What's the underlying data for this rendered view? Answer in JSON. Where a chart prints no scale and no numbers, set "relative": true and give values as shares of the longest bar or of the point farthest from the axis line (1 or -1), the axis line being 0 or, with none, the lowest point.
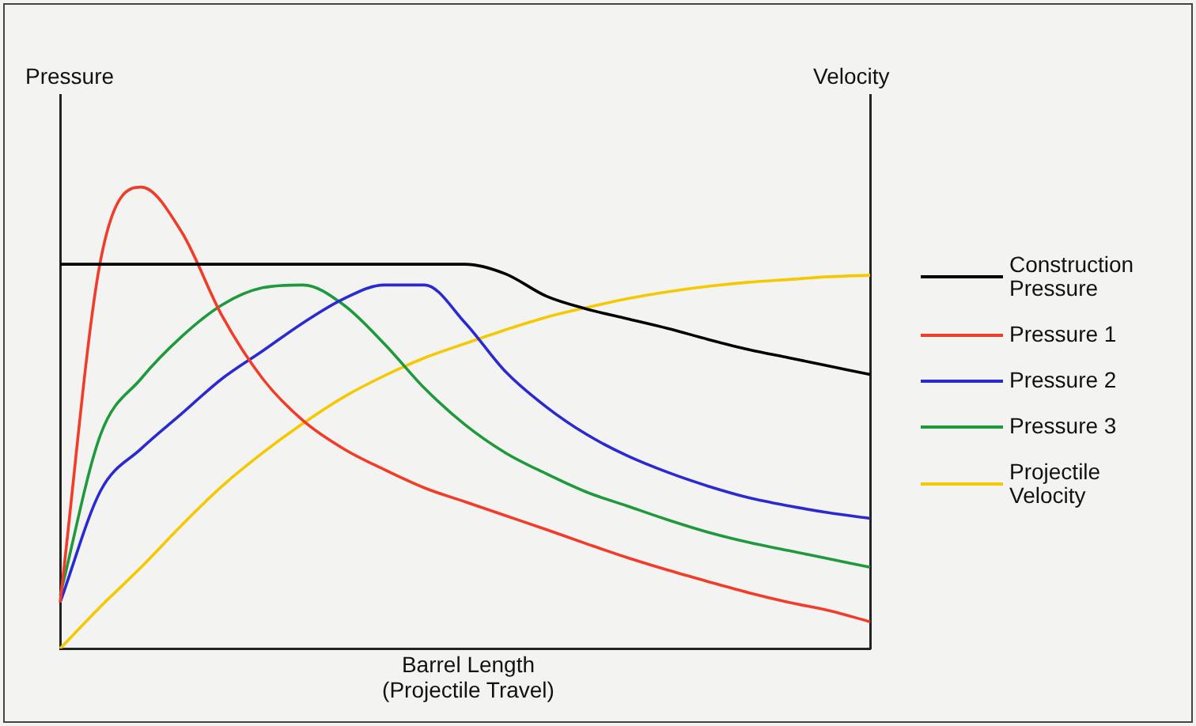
{
  "chart_data": {
    "type": "line",
    "relative": true,
    "ylabel": "Pressure",
    "y2label": "Velocity",
    "xlabel": "Barrel Length (Projectile Travel)",
    "categories": [
      null,
      null,
      null,
      null,
      null,
      null,
      null,
      null,
      null,
      null,
      null,
      null,
      null,
      null,
      null,
      null,
      null,
      null,
      null,
      null,
      null
    ],
    "series": [
      {
        "name": "Construction Pressure",
        "color": "#000000",
        "values": [
          0.833,
          0.833,
          0.833,
          0.833,
          0.833,
          0.833,
          0.833,
          0.833,
          0.833,
          0.833,
          0.833,
          0.812,
          0.764,
          0.736,
          0.715,
          0.694,
          0.67,
          0.648,
          0.63,
          0.612,
          0.594
        ]
      },
      {
        "name": "Pressure 1",
        "color": "#f03c28",
        "values": [
          0.1,
          0.842,
          1,
          0.903,
          0.721,
          0.585,
          0.494,
          0.433,
          0.388,
          0.348,
          0.318,
          0.288,
          0.258,
          0.227,
          0.197,
          0.17,
          0.145,
          0.121,
          0.1,
          0.082,
          0.058
        ]
      },
      {
        "name": "Pressure 2",
        "color": "#2a2ad0",
        "values": [
          0.1,
          0.342,
          0.433,
          0.509,
          0.585,
          0.645,
          0.706,
          0.758,
          0.788,
          0.788,
          0.706,
          0.6,
          0.524,
          0.464,
          0.418,
          0.382,
          0.352,
          0.327,
          0.309,
          0.294,
          0.282
        ]
      },
      {
        "name": "Pressure 3",
        "color": "#1e9a3c",
        "values": [
          0.115,
          0.464,
          0.585,
          0.676,
          0.745,
          0.782,
          0.788,
          0.745,
          0.661,
          0.564,
          0.485,
          0.424,
          0.379,
          0.339,
          0.309,
          0.279,
          0.252,
          0.23,
          0.212,
          0.194,
          0.176
        ]
      },
      {
        "name": "Projectile Velocity",
        "color": "#f5c800",
        "values": [
          0,
          0.091,
          0.176,
          0.267,
          0.352,
          0.424,
          0.488,
          0.545,
          0.591,
          0.63,
          0.661,
          0.691,
          0.718,
          0.739,
          0.758,
          0.773,
          0.785,
          0.794,
          0.8,
          0.806,
          0.809
        ]
      }
    ],
    "legend": "right",
    "grid": false,
    "marker": "none",
    "line_style": "solid",
    "tick_labels": false
  }
}
